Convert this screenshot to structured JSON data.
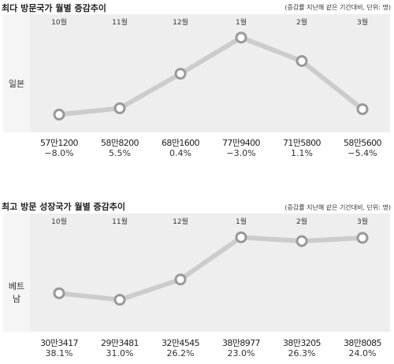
{
  "charts": [
    {
      "title": "최다 방문국가 월별 증감추이",
      "note": "(증감률 지난해 같은 기간대비, 단위: 명)",
      "country": "일본",
      "months": [
        "10월",
        "11월",
        "12월",
        "1월",
        "2월",
        "3월"
      ],
      "value_labels": [
        "57만1200",
        "58만8200",
        "68만1600",
        "77만9400",
        "71만5800",
        "58만5600"
      ],
      "pct_labels": [
        "−8.0%",
        "5.5%",
        "0.4%",
        "−3.0%",
        "1.1%",
        "−5.4%"
      ]
    },
    {
      "title": "최고 방문 성장국가 월별 증감추이",
      "note": "(증감률 지난해 같은 기간대비, 단위: 명)",
      "country": "베트남",
      "months": [
        "10월",
        "11월",
        "12월",
        "1월",
        "2월",
        "3월"
      ],
      "value_labels": [
        "30만3417",
        "29만3481",
        "32만4545",
        "38만8977",
        "38만3205",
        "38만8085"
      ],
      "pct_labels": [
        "38.1%",
        "31.0%",
        "26.2%",
        "23.0%",
        "26.3%",
        "24.0%"
      ]
    }
  ],
  "chart_data": [
    {
      "type": "line",
      "title": "최다 방문국가 월별 증감추이",
      "categories": [
        "10월",
        "11월",
        "12월",
        "1월",
        "2월",
        "3월"
      ],
      "series": [
        {
          "name": "일본",
          "values": [
            571200,
            588200,
            681600,
            779400,
            715800,
            585600
          ]
        }
      ],
      "ylim": [
        540000,
        800000
      ],
      "line_color": "#cccccc",
      "marker_stroke": "#999999",
      "marker_fill": "#ffffff"
    },
    {
      "type": "line",
      "title": "최고 방문 성장국가 월별 증감추이",
      "categories": [
        "10월",
        "11월",
        "12월",
        "1월",
        "2월",
        "3월"
      ],
      "series": [
        {
          "name": "베트남",
          "values": [
            303417,
            293481,
            324545,
            388977,
            383205,
            388085
          ]
        }
      ],
      "ylim": [
        270000,
        400000
      ],
      "line_color": "#cccccc",
      "marker_stroke": "#999999",
      "marker_fill": "#ffffff"
    }
  ]
}
